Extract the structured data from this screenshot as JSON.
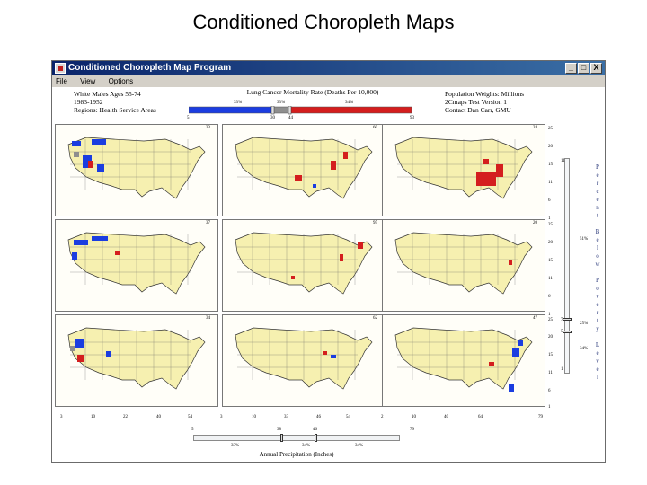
{
  "slide": {
    "title": "Conditioned Choropleth Maps"
  },
  "window": {
    "title": "Conditioned Choropleth Map Program",
    "controls": [
      "_",
      "□",
      "X"
    ],
    "menu": [
      "File",
      "View",
      "Options"
    ]
  },
  "header": {
    "left": [
      "White Males Ages 55-74",
      "1983-1952",
      "Regions: Health Service Areas"
    ],
    "right": [
      "Population Weights: Millions",
      "2Cmaps Test Version 1",
      "Contact Dan Carr, GMU"
    ],
    "legend_title": "Lung Cancer Mortality Rate (Deaths Per 10,000)",
    "legend_pcts": [
      "33%",
      "33%",
      "34%"
    ],
    "legend_ticks": [
      "5",
      "30",
      "44",
      "93"
    ],
    "legend_colors": {
      "low": "#1b3de0",
      "mid": "#8e8e8e",
      "high": "#d41e1e"
    }
  },
  "panels": [
    {
      "label": "33"
    },
    {
      "label": "60"
    },
    {
      "label": "24"
    },
    {
      "label": "37"
    },
    {
      "label": "95"
    },
    {
      "label": "20"
    },
    {
      "label": "34"
    },
    {
      "label": "62"
    },
    {
      "label": "47"
    }
  ],
  "right_slider": {
    "ticks": [
      "25",
      "20",
      "15",
      "11",
      "6",
      "1"
    ],
    "pct_labels": [
      "51%",
      "25%",
      "34%"
    ],
    "handle_values": [
      "11",
      "7",
      "5",
      "1"
    ],
    "vertical_label_letters": [
      "P",
      "e",
      "r",
      "c",
      "e",
      "n",
      "t",
      "",
      "B",
      "e",
      "l",
      "o",
      "w",
      "",
      "P",
      "o",
      "v",
      "e",
      "r",
      "t",
      "y",
      "",
      "L",
      "e",
      "v",
      "e",
      "l"
    ]
  },
  "bottom_axis": {
    "ticks_panel1": [
      "3",
      "10",
      "22",
      "40",
      "54"
    ],
    "ticks_panel2": [
      "3",
      "10",
      "33",
      "46",
      "54"
    ],
    "ticks_panel3": [
      "2",
      "10",
      "40",
      "64",
      "79"
    ],
    "slider_ticks": [
      "5",
      "38",
      "46",
      "79"
    ],
    "pct_labels": [
      "33%",
      "34%",
      "34%"
    ],
    "label": "Annual Precipitation (Inches)"
  }
}
